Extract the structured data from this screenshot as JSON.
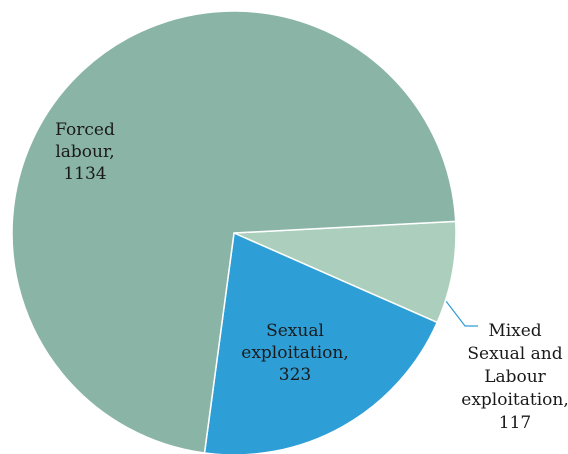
{
  "chart_data": {
    "type": "pie",
    "title": "",
    "slices": [
      {
        "label_lines": [
          "Mixed",
          "Sexual and",
          "Labour",
          "exploitation,",
          "117"
        ],
        "name": "Mixed Sexual and Labour exploitation",
        "value": 117,
        "color": "#abcfbc"
      },
      {
        "label_lines": [
          "Sexual",
          "exploitation,",
          "323"
        ],
        "name": "Sexual exploitation",
        "value": 323,
        "color": "#2e9ed6"
      },
      {
        "label_lines": [
          "Forced",
          "labour,",
          "1134"
        ],
        "name": "Forced labour",
        "value": 1134,
        "color": "#89b4a6"
      }
    ],
    "colors": {
      "background": "#ffffff",
      "leader_line": "#2e9ed6",
      "separator": "#ffffff"
    }
  }
}
